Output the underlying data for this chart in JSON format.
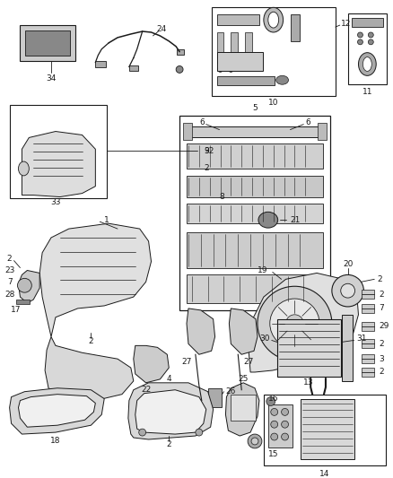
{
  "bg_color": "#ffffff",
  "line_color": "#1a1a1a",
  "fig_width": 4.38,
  "fig_height": 5.33,
  "dpi": 100,
  "font_size": 6.5
}
